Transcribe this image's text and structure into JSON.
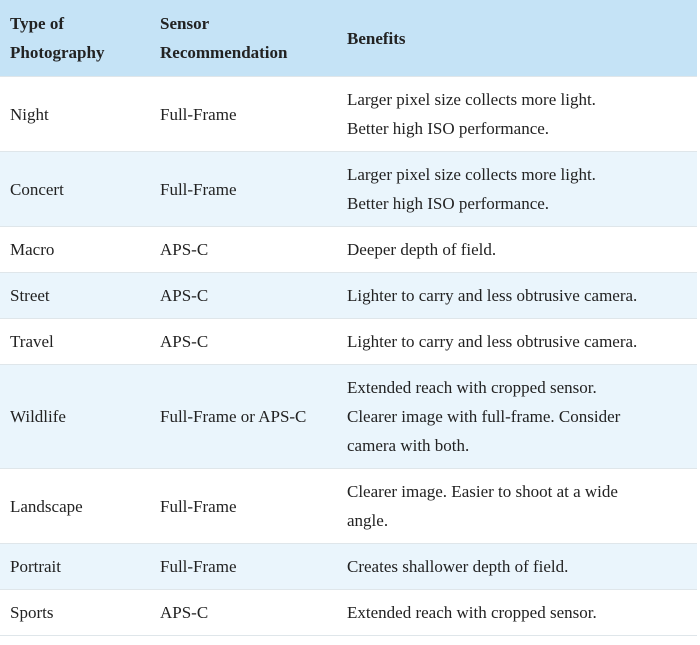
{
  "table": {
    "headers": [
      "Type of Photography",
      "Sensor Recommendation",
      "Benefits"
    ],
    "rows": [
      [
        "Night",
        "Full-Frame",
        "Larger pixel size collects more light.\nBetter high ISO performance."
      ],
      [
        "Concert",
        "Full-Frame",
        "Larger pixel size collects more light.\nBetter high ISO performance."
      ],
      [
        "Macro",
        "APS-C",
        "Deeper depth of field."
      ],
      [
        "Street",
        "APS-C",
        "Lighter to carry and less obtrusive camera."
      ],
      [
        "Travel",
        "APS-C",
        "Lighter to carry and less obtrusive camera."
      ],
      [
        "Wildlife",
        "Full-Frame or APS-C",
        "Extended reach with cropped sensor.\nClearer image with full-frame. Consider\ncamera with both."
      ],
      [
        "Landscape",
        "Full-Frame",
        "Clearer image. Easier to shoot at a wide\nangle."
      ],
      [
        "Portrait",
        "Full-Frame",
        "Creates shallower depth of field."
      ],
      [
        "Sports",
        "APS-C",
        "Extended reach with cropped sensor."
      ]
    ]
  }
}
